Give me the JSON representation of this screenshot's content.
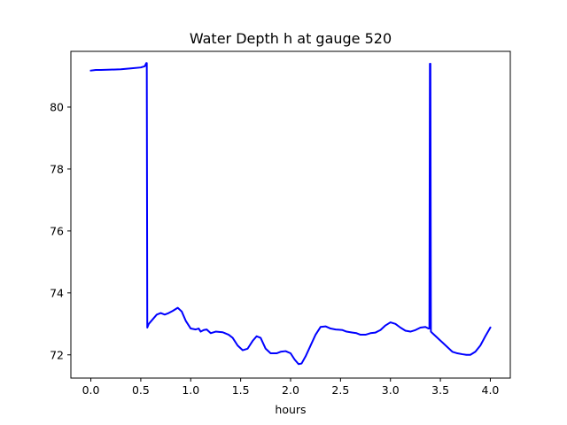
{
  "chart_data": {
    "type": "line",
    "title": "Water Depth h at gauge 520",
    "xlabel": "hours",
    "ylabel": "",
    "xlim": [
      -0.2,
      4.2
    ],
    "ylim": [
      71.25,
      81.8
    ],
    "xticks": [
      0.0,
      0.5,
      1.0,
      1.5,
      2.0,
      2.5,
      3.0,
      3.5,
      4.0
    ],
    "xtick_labels": [
      "0.0",
      "0.5",
      "1.0",
      "1.5",
      "2.0",
      "2.5",
      "3.0",
      "3.5",
      "4.0"
    ],
    "yticks": [
      72,
      74,
      76,
      78,
      80
    ],
    "ytick_labels": [
      "72",
      "74",
      "76",
      "78",
      "80"
    ],
    "grid": false,
    "series": [
      {
        "color": "#0000ff",
        "x": [
          0.0,
          0.05,
          0.1,
          0.2,
          0.3,
          0.4,
          0.5,
          0.54,
          0.555,
          0.56,
          0.565,
          0.58,
          0.62,
          0.66,
          0.7,
          0.74,
          0.78,
          0.82,
          0.87,
          0.91,
          0.95,
          1.0,
          1.05,
          1.08,
          1.1,
          1.13,
          1.16,
          1.2,
          1.25,
          1.32,
          1.38,
          1.42,
          1.47,
          1.52,
          1.57,
          1.62,
          1.66,
          1.7,
          1.75,
          1.8,
          1.86,
          1.9,
          1.95,
          2.0,
          2.04,
          2.08,
          2.11,
          2.15,
          2.2,
          2.25,
          2.3,
          2.35,
          2.4,
          2.45,
          2.52,
          2.56,
          2.62,
          2.66,
          2.7,
          2.75,
          2.8,
          2.85,
          2.9,
          2.95,
          3.0,
          3.05,
          3.1,
          3.15,
          3.2,
          3.25,
          3.3,
          3.35,
          3.38,
          3.39,
          3.395,
          3.4,
          3.405,
          3.42,
          3.47,
          3.52,
          3.57,
          3.62,
          3.67,
          3.72,
          3.76,
          3.8,
          3.85,
          3.9,
          3.95,
          4.0
        ],
        "y": [
          81.18,
          81.2,
          81.2,
          81.21,
          81.22,
          81.25,
          81.28,
          81.32,
          81.42,
          81.42,
          72.88,
          73.0,
          73.15,
          73.3,
          73.35,
          73.3,
          73.35,
          73.42,
          73.52,
          73.4,
          73.1,
          72.85,
          72.82,
          72.85,
          72.75,
          72.8,
          72.82,
          72.7,
          72.75,
          72.73,
          72.65,
          72.55,
          72.3,
          72.15,
          72.2,
          72.45,
          72.6,
          72.55,
          72.2,
          72.05,
          72.05,
          72.1,
          72.12,
          72.05,
          71.85,
          71.7,
          71.72,
          71.95,
          72.3,
          72.65,
          72.9,
          72.92,
          72.85,
          72.82,
          72.8,
          72.75,
          72.72,
          72.7,
          72.65,
          72.65,
          72.7,
          72.72,
          72.8,
          72.95,
          73.05,
          73.0,
          72.88,
          72.78,
          72.75,
          72.8,
          72.88,
          72.9,
          72.85,
          72.85,
          81.4,
          81.4,
          72.75,
          72.7,
          72.55,
          72.4,
          72.25,
          72.1,
          72.05,
          72.02,
          72.0,
          72.0,
          72.1,
          72.3,
          72.6,
          72.88
        ]
      }
    ]
  }
}
